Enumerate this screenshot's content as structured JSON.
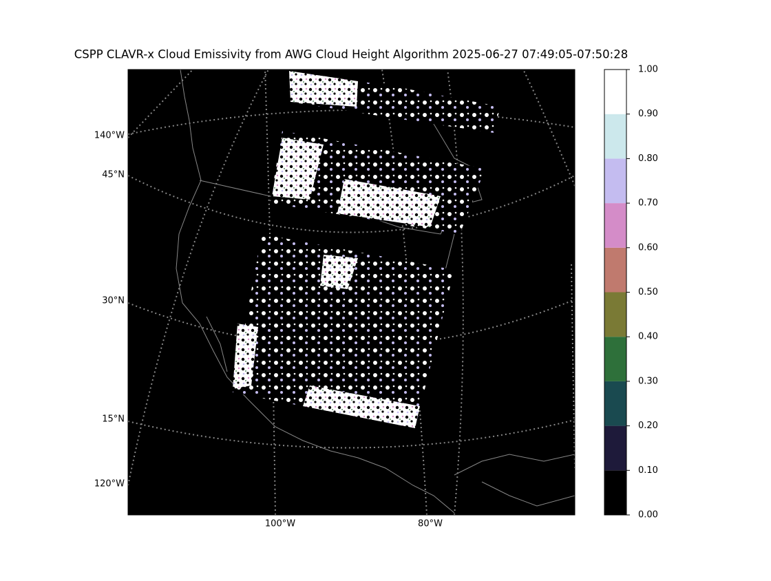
{
  "chart_data": {
    "type": "map",
    "title": "CSPP CLAVR-x Cloud Emissivity from AWG Cloud Height Algorithm 2025-06-27 07:49:05-07:50:28",
    "graticule_labels": {
      "left": [
        "140°W",
        "45°N",
        "30°N",
        "15°N",
        "120°W"
      ],
      "bottom": [
        "100°W",
        "80°W"
      ]
    },
    "colorbar": {
      "lim": [
        0,
        1
      ],
      "ticks": [
        {
          "value": 0,
          "label": "0.00"
        },
        {
          "value": 0.1,
          "label": "0.10"
        },
        {
          "value": 0.2,
          "label": "0.20"
        },
        {
          "value": 0.3,
          "label": "0.30"
        },
        {
          "value": 0.4,
          "label": "0.40"
        },
        {
          "value": 0.5,
          "label": "0.50"
        },
        {
          "value": 0.6,
          "label": "0.60"
        },
        {
          "value": 0.7,
          "label": "0.70"
        },
        {
          "value": 0.8,
          "label": "0.80"
        },
        {
          "value": 0.9,
          "label": "0.90"
        },
        {
          "value": 1,
          "label": "1.00"
        }
      ],
      "colors": [
        "#000000",
        "#1e1a3a",
        "#1a4a50",
        "#2e703a",
        "#7a7a35",
        "#c07a6e",
        "#d48cc8",
        "#c4bcf0",
        "#cce8ec",
        "#ffffff"
      ]
    }
  }
}
